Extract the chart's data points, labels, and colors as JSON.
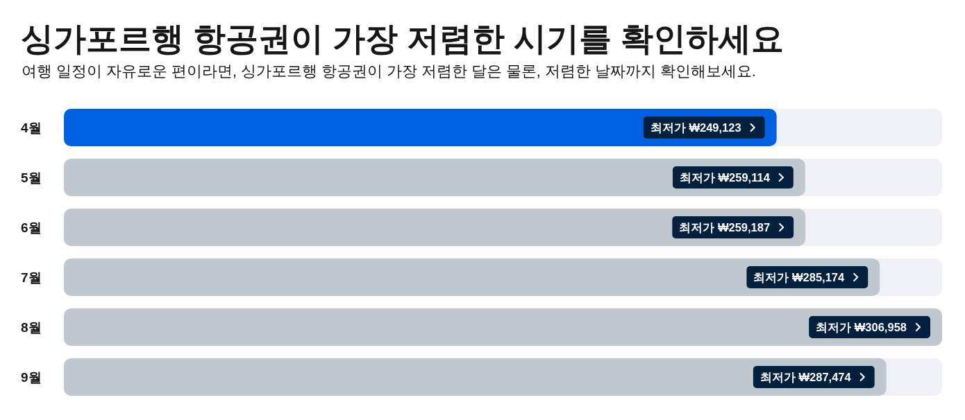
{
  "chart_data": {
    "type": "bar",
    "orientation": "horizontal",
    "title": "싱가포르행 항공권이 가장 저렴한 시기를 확인하세요",
    "subtitle": "여행 일정이 자유로운 편이라면, 싱가포르행 항공권이 가장 저렴한 달은 물론, 저렴한 날짜까지 확인해보세요.",
    "categories": [
      "4월",
      "5월",
      "6월",
      "7월",
      "8월",
      "9월"
    ],
    "values": [
      249123,
      259114,
      259187,
      285174,
      306958,
      287474
    ],
    "colors": [
      "#0062e3",
      "#c1c7cf",
      "#c1c7cf",
      "#c1c7cf",
      "#c1c7cf",
      "#c1c7cf"
    ],
    "value_labels": [
      "최저가 ₩249,123",
      "최저가 ₩259,114",
      "최저가 ₩259,187",
      "최저가 ₩285,174",
      "최저가 ₩306,958",
      "최저가 ₩287,474"
    ],
    "xlim": [
      0,
      306958
    ],
    "tick_labels": "y"
  }
}
